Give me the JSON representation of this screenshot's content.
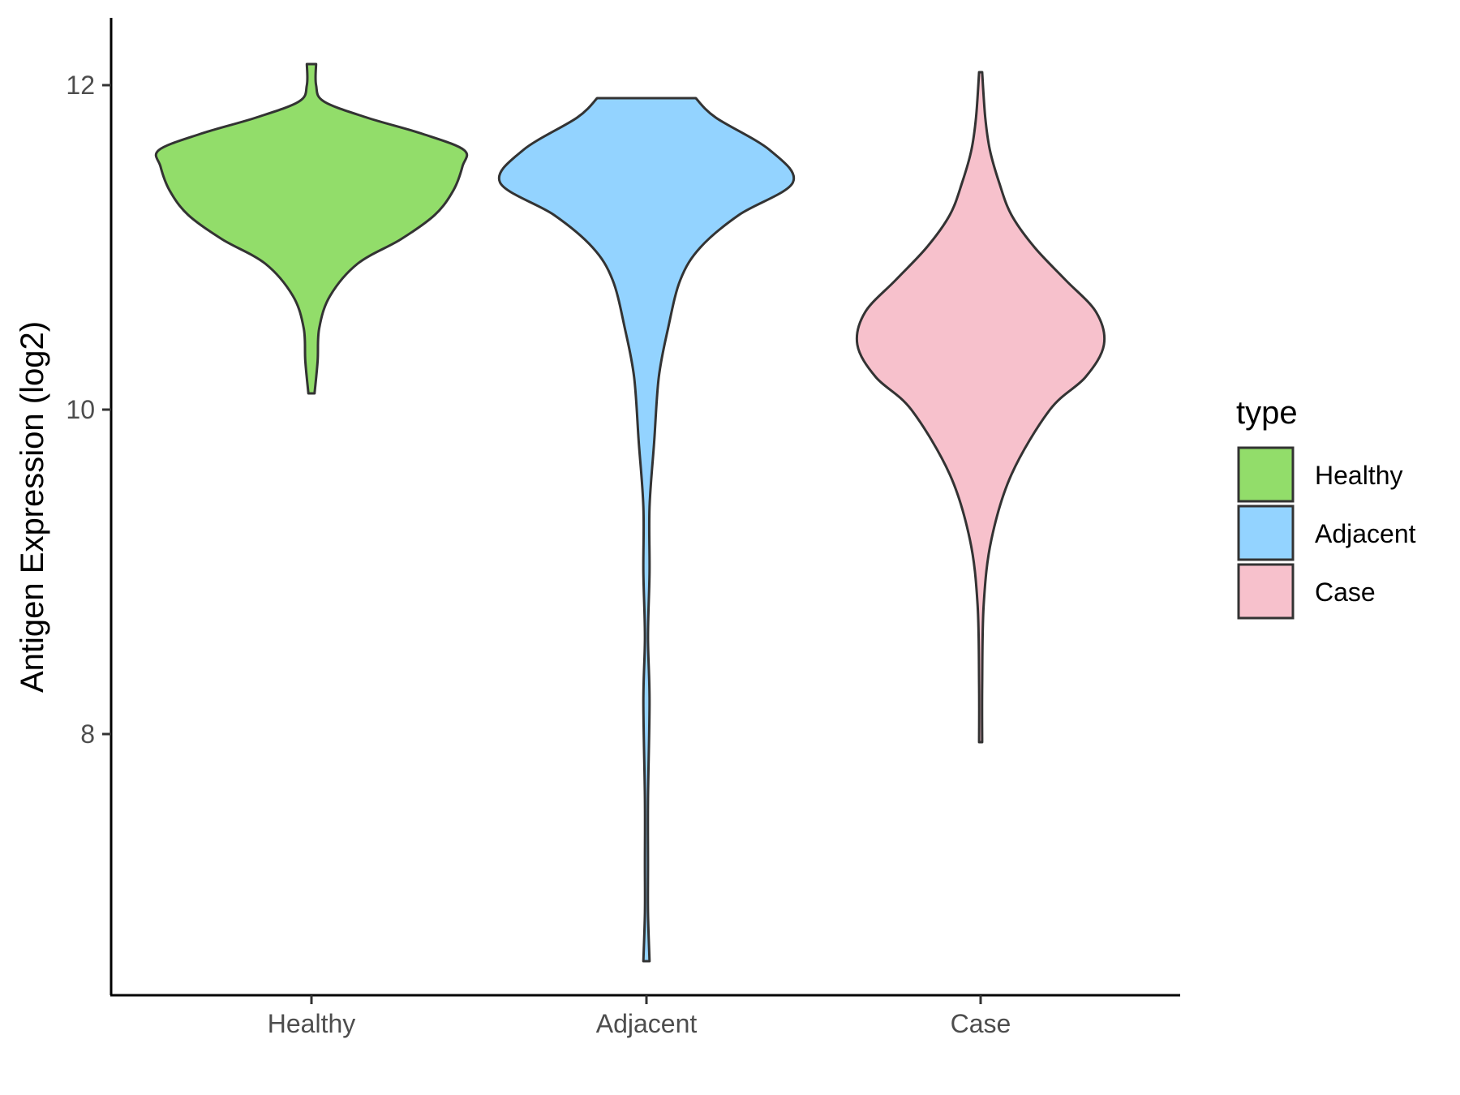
{
  "chart_data": {
    "type": "violin",
    "ylabel": "Antigen Expression (log2)",
    "xlabel": "",
    "yticks": [
      8,
      10,
      12
    ],
    "ylim": [
      6.4,
      12.4
    ],
    "categories": [
      "Healthy",
      "Adjacent",
      "Case"
    ],
    "legend": {
      "title": "type",
      "placement": "right",
      "entries": [
        "Healthy",
        "Adjacent",
        "Case"
      ]
    },
    "colors": {
      "Healthy": "#92dd6a",
      "Adjacent": "#93d3ff",
      "Case": "#f7c1cc",
      "outline": "#333333"
    },
    "series": [
      {
        "name": "Healthy",
        "min": 10.1,
        "max": 12.13,
        "density": [
          [
            10.1,
            0.02
          ],
          [
            10.3,
            0.04
          ],
          [
            10.5,
            0.05
          ],
          [
            10.7,
            0.12
          ],
          [
            10.9,
            0.3
          ],
          [
            11.05,
            0.58
          ],
          [
            11.2,
            0.8
          ],
          [
            11.35,
            0.92
          ],
          [
            11.5,
            0.98
          ],
          [
            11.6,
            0.99
          ],
          [
            11.7,
            0.72
          ],
          [
            11.8,
            0.36
          ],
          [
            11.9,
            0.08
          ],
          [
            12.0,
            0.03
          ],
          [
            12.13,
            0.03
          ]
        ]
      },
      {
        "name": "Adjacent",
        "min": 6.6,
        "max": 11.92,
        "density": [
          [
            6.6,
            0.02
          ],
          [
            6.9,
            0.01
          ],
          [
            7.2,
            0.01
          ],
          [
            7.6,
            0.01
          ],
          [
            8.2,
            0.02
          ],
          [
            8.6,
            0.01
          ],
          [
            9.0,
            0.02
          ],
          [
            9.4,
            0.02
          ],
          [
            9.8,
            0.05
          ],
          [
            10.2,
            0.08
          ],
          [
            10.5,
            0.14
          ],
          [
            10.8,
            0.22
          ],
          [
            11.0,
            0.35
          ],
          [
            11.2,
            0.6
          ],
          [
            11.4,
            0.95
          ],
          [
            11.6,
            0.8
          ],
          [
            11.8,
            0.45
          ],
          [
            11.92,
            0.32
          ]
        ]
      },
      {
        "name": "Case",
        "min": 7.95,
        "max": 12.08,
        "density": [
          [
            7.95,
            0.01
          ],
          [
            8.3,
            0.01
          ],
          [
            8.8,
            0.02
          ],
          [
            9.2,
            0.07
          ],
          [
            9.6,
            0.2
          ],
          [
            10.0,
            0.45
          ],
          [
            10.2,
            0.68
          ],
          [
            10.4,
            0.8
          ],
          [
            10.6,
            0.75
          ],
          [
            10.8,
            0.55
          ],
          [
            11.0,
            0.35
          ],
          [
            11.2,
            0.2
          ],
          [
            11.4,
            0.12
          ],
          [
            11.6,
            0.06
          ],
          [
            11.8,
            0.03
          ],
          [
            12.08,
            0.01
          ]
        ]
      }
    ]
  }
}
